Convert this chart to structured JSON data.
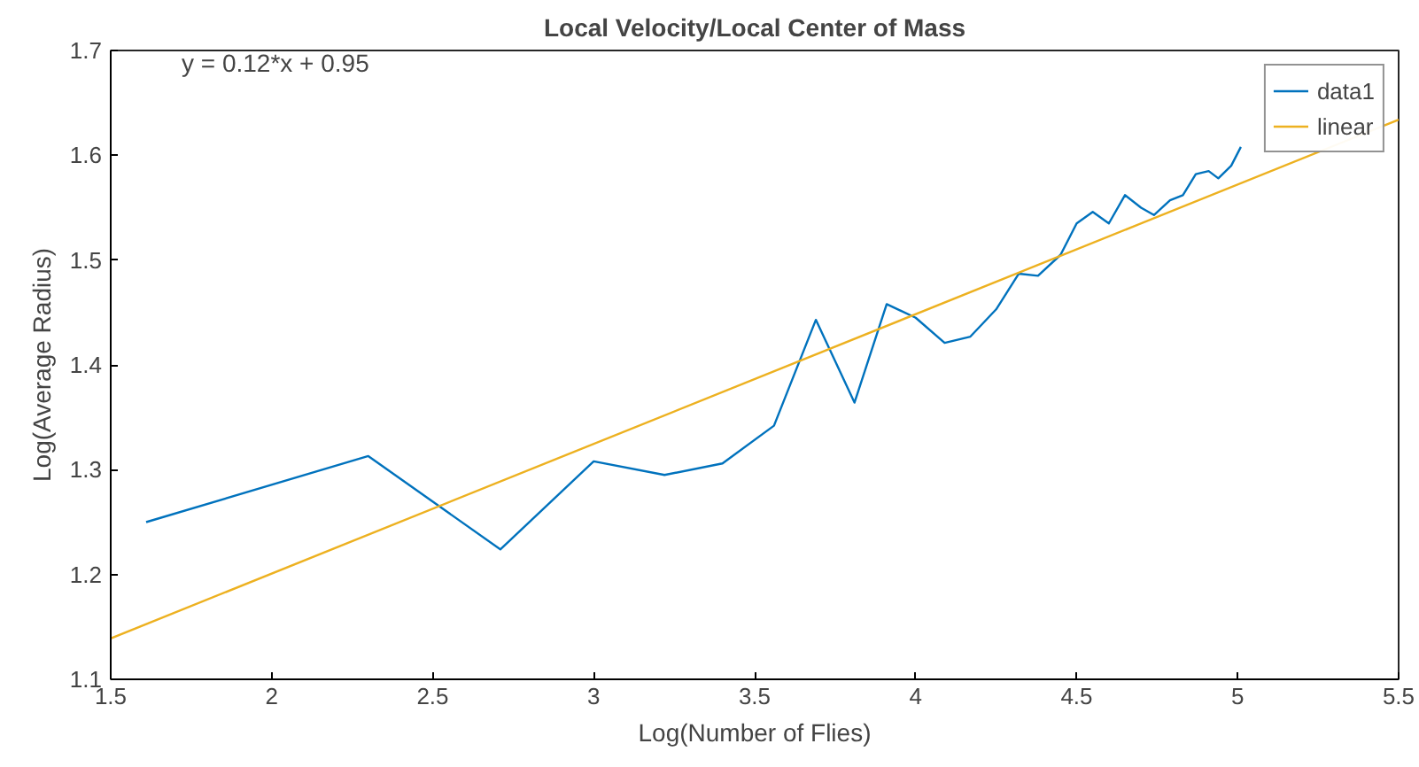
{
  "chart_data": {
    "type": "line",
    "title": "Local Velocity/Local Center of Mass",
    "xlabel": "Log(Number of Flies)",
    "ylabel": "Log(Average Radius)",
    "annotations": [
      "y = 0.12*x + 0.95"
    ],
    "series": [
      {
        "name": "data1",
        "color": "#0072bd",
        "x": [
          1.61,
          2.3,
          2.71,
          3.0,
          3.22,
          3.4,
          3.56,
          3.69,
          3.81,
          3.91,
          4.0,
          4.09,
          4.17,
          4.25,
          4.32,
          4.38,
          4.45,
          4.5,
          4.55,
          4.6,
          4.65,
          4.7,
          4.74,
          4.79,
          4.83,
          4.87,
          4.91,
          4.94,
          4.98,
          5.01
        ],
        "values": [
          1.25,
          1.313,
          1.224,
          1.308,
          1.295,
          1.306,
          1.342,
          1.443,
          1.364,
          1.458,
          1.445,
          1.421,
          1.427,
          1.453,
          1.487,
          1.485,
          1.505,
          1.535,
          1.546,
          1.535,
          1.562,
          1.55,
          1.543,
          1.557,
          1.562,
          1.582,
          1.585,
          1.578,
          1.59,
          1.608
        ]
      },
      {
        "name": "linear",
        "color": "#edb120",
        "x": [
          1.5,
          5.5
        ],
        "values": [
          1.139,
          1.634
        ]
      }
    ],
    "xlim": [
      1.5,
      5.5
    ],
    "ylim": [
      1.1,
      1.7
    ],
    "xticks": [
      1.5,
      2,
      2.5,
      3,
      3.5,
      4,
      4.5,
      5,
      5.5
    ],
    "yticks": [
      1.1,
      1.2,
      1.3,
      1.4,
      1.5,
      1.6,
      1.7
    ],
    "grid": false,
    "legend": "top right",
    "line_style": "solid",
    "marker": "none"
  }
}
